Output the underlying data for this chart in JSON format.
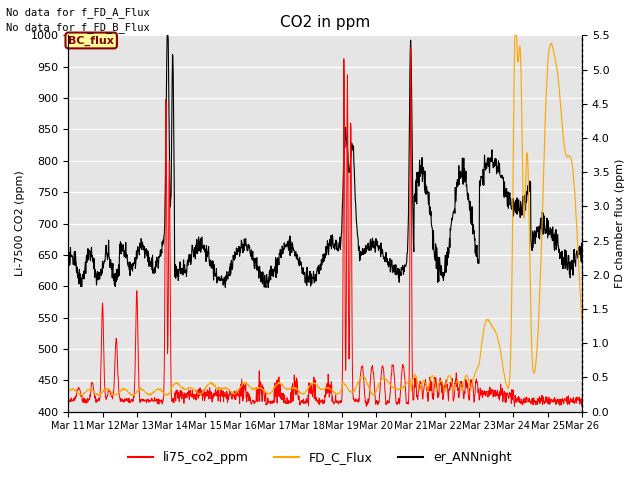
{
  "title": "CO2 in ppm",
  "ylabel_left": "Li-7500 CO2 (ppm)",
  "ylabel_right": "FD chamber flux (ppm)",
  "ylim_left": [
    400,
    1000
  ],
  "ylim_right": [
    0.0,
    5.5
  ],
  "yticks_left": [
    400,
    450,
    500,
    550,
    600,
    650,
    700,
    750,
    800,
    850,
    900,
    950,
    1000
  ],
  "yticks_right": [
    0.0,
    0.5,
    1.0,
    1.5,
    2.0,
    2.5,
    3.0,
    3.5,
    4.0,
    4.5,
    5.0,
    5.5
  ],
  "xtick_labels": [
    "Mar 11",
    "Mar 12",
    "Mar 13",
    "Mar 14",
    "Mar 15",
    "Mar 16",
    "Mar 17",
    "Mar 18",
    "Mar 19",
    "Mar 20",
    "Mar 21",
    "Mar 22",
    "Mar 23",
    "Mar 24",
    "Mar 25",
    "Mar 26"
  ],
  "n_xdays": 16,
  "annotations": [
    "No data for f_FD_A_Flux",
    "No data for f_FD_B_Flux"
  ],
  "legend_entries": [
    "li75_co2_ppm",
    "FD_C_Flux",
    "er_ANNnight"
  ],
  "legend_colors": [
    "red",
    "orange",
    "black"
  ],
  "bc_flux_label": "BC_flux",
  "background_color": "#e5e5e5",
  "grid_color": "white"
}
